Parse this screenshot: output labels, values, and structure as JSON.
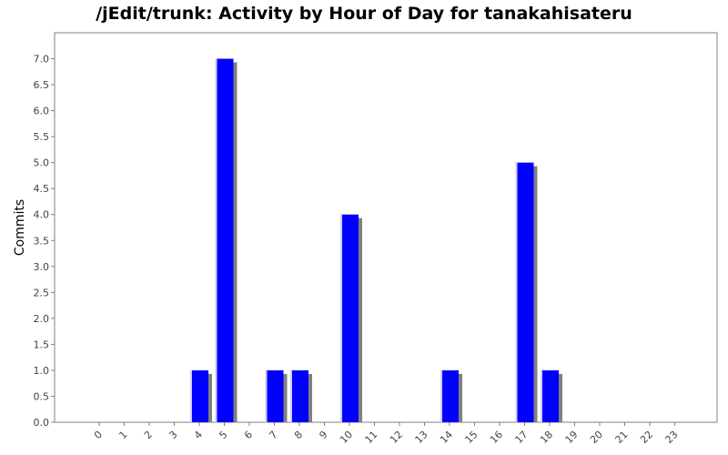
{
  "chart_data": {
    "type": "bar",
    "title": "/jEdit/trunk: Activity by Hour of Day for tanakahisateru",
    "xlabel": "",
    "ylabel": "Commits",
    "categories": [
      "0",
      "1",
      "2",
      "3",
      "4",
      "5",
      "6",
      "7",
      "8",
      "9",
      "10",
      "11",
      "12",
      "13",
      "14",
      "15",
      "16",
      "17",
      "18",
      "19",
      "20",
      "21",
      "22",
      "23"
    ],
    "values": [
      0,
      0,
      0,
      0,
      1,
      7,
      0,
      1,
      1,
      0,
      4,
      0,
      0,
      0,
      1,
      0,
      0,
      5,
      1,
      0,
      0,
      0,
      0,
      0
    ],
    "ylim": [
      0,
      7.5
    ],
    "yticks": [
      "0.0",
      "0.5",
      "1.0",
      "1.5",
      "2.0",
      "2.5",
      "3.0",
      "3.5",
      "4.0",
      "4.5",
      "5.0",
      "5.5",
      "6.0",
      "6.5",
      "7.0"
    ],
    "grid": false,
    "legend": "none",
    "colors": {
      "bar": "#0000ff",
      "bar_highlight": "#ccccff",
      "bar_shadow": "#808080",
      "plot_border": "#808080",
      "background": "#ffffff"
    }
  }
}
